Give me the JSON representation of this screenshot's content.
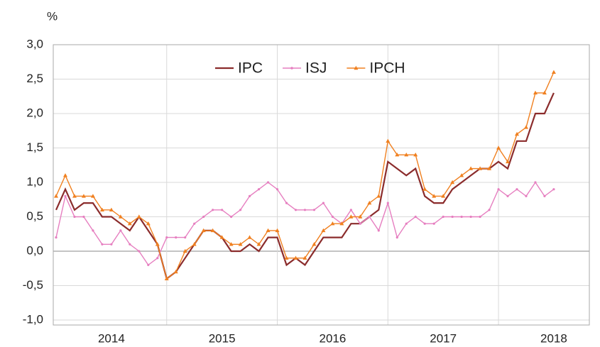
{
  "chart_data": {
    "type": "line",
    "y_label": "%",
    "categories": [
      null,
      null,
      null,
      null,
      null,
      null,
      null,
      null,
      null,
      null,
      null,
      null,
      null,
      null,
      null,
      null,
      null,
      null,
      null,
      null,
      null,
      null,
      null,
      null,
      null,
      null,
      null,
      null,
      null,
      null,
      null,
      null,
      null,
      null,
      null,
      null,
      null,
      null,
      null,
      null,
      null,
      null,
      null,
      null,
      null,
      null,
      null,
      null,
      null,
      null,
      null,
      null,
      null,
      null,
      null
    ],
    "year_labels": [
      "2014",
      "2015",
      "2016",
      "2017",
      "2018"
    ],
    "ylim": [
      -1,
      3
    ],
    "yticks": [
      {
        "value": -1,
        "label": "-1,0"
      },
      {
        "value": -0.5,
        "label": "-0,5"
      },
      {
        "value": 0,
        "label": "0,0"
      },
      {
        "value": 0.5,
        "label": "0,5"
      },
      {
        "value": 1,
        "label": "1,0"
      },
      {
        "value": 1.5,
        "label": "1,5"
      },
      {
        "value": 2,
        "label": "2,0"
      },
      {
        "value": 2.5,
        "label": "2,5"
      },
      {
        "value": 3,
        "label": "3,0"
      }
    ],
    "grid": true,
    "legend": "top",
    "series": [
      {
        "name": "IPC",
        "color": "#8b2c2c",
        "marker": "none",
        "values": [
          0.6,
          0.9,
          0.6,
          0.7,
          0.7,
          0.5,
          0.5,
          0.4,
          0.3,
          0.5,
          0.3,
          0.1,
          -0.4,
          -0.3,
          -0.1,
          0.1,
          0.3,
          0.3,
          0.2,
          0.0,
          0.0,
          0.1,
          0.0,
          0.2,
          0.2,
          -0.2,
          -0.1,
          -0.2,
          0.0,
          0.2,
          0.2,
          0.2,
          0.4,
          0.4,
          0.5,
          0.6,
          1.3,
          1.2,
          1.1,
          1.2,
          0.8,
          0.7,
          0.7,
          0.9,
          1.0,
          1.1,
          1.2,
          1.2,
          1.3,
          1.2,
          1.6,
          1.6,
          2.0,
          2.0,
          2.3
        ]
      },
      {
        "name": "ISJ",
        "color": "#e67fc0",
        "marker": "dot",
        "values": [
          0.2,
          0.8,
          0.5,
          0.5,
          0.3,
          0.1,
          0.1,
          0.3,
          0.1,
          0.0,
          -0.2,
          -0.1,
          0.2,
          0.2,
          0.2,
          0.4,
          0.5,
          0.6,
          0.6,
          0.5,
          0.6,
          0.8,
          0.9,
          1.0,
          0.9,
          0.7,
          0.6,
          0.6,
          0.6,
          0.7,
          0.5,
          0.4,
          0.6,
          0.4,
          0.5,
          0.3,
          0.7,
          0.2,
          0.4,
          0.5,
          0.4,
          0.4,
          0.5,
          0.5,
          0.5,
          0.5,
          0.5,
          0.6,
          0.9,
          0.8,
          0.9,
          0.8,
          1.0,
          0.8,
          0.9
        ]
      },
      {
        "name": "IPCH",
        "color": "#f08020",
        "marker": "triangle",
        "values": [
          0.8,
          1.1,
          0.8,
          0.8,
          0.8,
          0.6,
          0.6,
          0.5,
          0.4,
          0.5,
          0.4,
          0.1,
          -0.4,
          -0.3,
          0.0,
          0.1,
          0.3,
          0.3,
          0.2,
          0.1,
          0.1,
          0.2,
          0.1,
          0.3,
          0.3,
          -0.1,
          -0.1,
          -0.1,
          0.1,
          0.3,
          0.4,
          0.4,
          0.5,
          0.5,
          0.7,
          0.8,
          1.6,
          1.4,
          1.4,
          1.4,
          0.9,
          0.8,
          0.8,
          1.0,
          1.1,
          1.2,
          1.2,
          1.2,
          1.5,
          1.3,
          1.7,
          1.8,
          2.3,
          2.3,
          2.6
        ]
      }
    ]
  }
}
